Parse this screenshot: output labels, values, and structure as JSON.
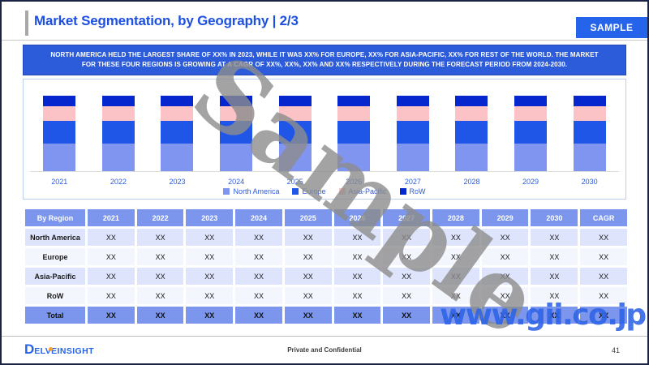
{
  "header": {
    "title": "Market Segmentation, by Geography | 2/3",
    "sample_label": "SAMPLE"
  },
  "banner": {
    "text": "NORTH AMERICA HELD THE LARGEST SHARE OF XX% IN 2023, WHILE IT WAS XX% FOR EUROPE, XX% FOR ASIA-PACIFIC, XX% FOR REST OF THE WORLD. THE MARKET FOR THESE FOUR REGIONS IS GROWING AT A CAGR OF XX%, XX%, XX% AND XX% RESPECTIVELY DURING THE FORECAST PERIOD FROM 2024-2030."
  },
  "chart_data": {
    "type": "bar",
    "stacked": true,
    "title": "",
    "xlabel": "",
    "ylabel": "",
    "ylim": [
      0,
      100
    ],
    "grid": false,
    "legend_position": "bottom",
    "categories": [
      "2021",
      "2022",
      "2023",
      "2024",
      "2025",
      "2026",
      "2027",
      "2028",
      "2029",
      "2030"
    ],
    "series": [
      {
        "name": "North America",
        "color": "#8095f0",
        "values": [
          37,
          37,
          37,
          37,
          37,
          37,
          37,
          37,
          37,
          37
        ]
      },
      {
        "name": "Europe",
        "color": "#2056e8",
        "values": [
          30,
          30,
          30,
          30,
          30,
          30,
          30,
          30,
          30,
          30
        ]
      },
      {
        "name": "Asia-Pacific",
        "color": "#fbc3c6",
        "values": [
          19,
          19,
          19,
          19,
          19,
          19,
          19,
          19,
          19,
          19
        ]
      },
      {
        "name": "RoW",
        "color": "#0627cd",
        "values": [
          14,
          14,
          14,
          14,
          14,
          14,
          14,
          14,
          14,
          14
        ]
      }
    ],
    "note": "100% stacked bars; underlying values shown as XX placeholders in table"
  },
  "table": {
    "headers": [
      "By Region",
      "2021",
      "2022",
      "2023",
      "2024",
      "2025",
      "2026",
      "2027",
      "2028",
      "2029",
      "2030",
      "CAGR"
    ],
    "rows": [
      {
        "label": "North America",
        "values": [
          "XX",
          "XX",
          "XX",
          "XX",
          "XX",
          "XX",
          "XX",
          "XX",
          "XX",
          "XX",
          "XX"
        ],
        "total": false
      },
      {
        "label": "Europe",
        "values": [
          "XX",
          "XX",
          "XX",
          "XX",
          "XX",
          "XX",
          "XX",
          "XX",
          "XX",
          "XX",
          "XX"
        ],
        "total": false
      },
      {
        "label": "Asia-Pacific",
        "values": [
          "XX",
          "XX",
          "XX",
          "XX",
          "XX",
          "XX",
          "XX",
          "XX",
          "XX",
          "XX",
          "XX"
        ],
        "total": false
      },
      {
        "label": "RoW",
        "values": [
          "XX",
          "XX",
          "XX",
          "XX",
          "XX",
          "XX",
          "XX",
          "XX",
          "XX",
          "XX",
          "XX"
        ],
        "total": false
      },
      {
        "label": "Total",
        "values": [
          "XX",
          "XX",
          "XX",
          "XX",
          "XX",
          "XX",
          "XX",
          "XX",
          "XX",
          "XX",
          "XX"
        ],
        "total": true
      }
    ]
  },
  "footer": {
    "logo_d": "D",
    "logo_text": "ELVEINSIGHT",
    "confidential": "Private and Confidential",
    "page_number": "41"
  },
  "watermarks": {
    "diagonal": "Sample",
    "url": "www.gii.co.jp"
  },
  "theme": {
    "accent_blue": "#2563eb",
    "title_blue": "#1d50e0",
    "banner_blue": "#2d5cdb",
    "table_header_bg": "#7b96ec",
    "row_alt_bg": "#dee4fb",
    "watermark_gray": "#8d8d8d",
    "watermark_blue": "#2d63e8"
  }
}
